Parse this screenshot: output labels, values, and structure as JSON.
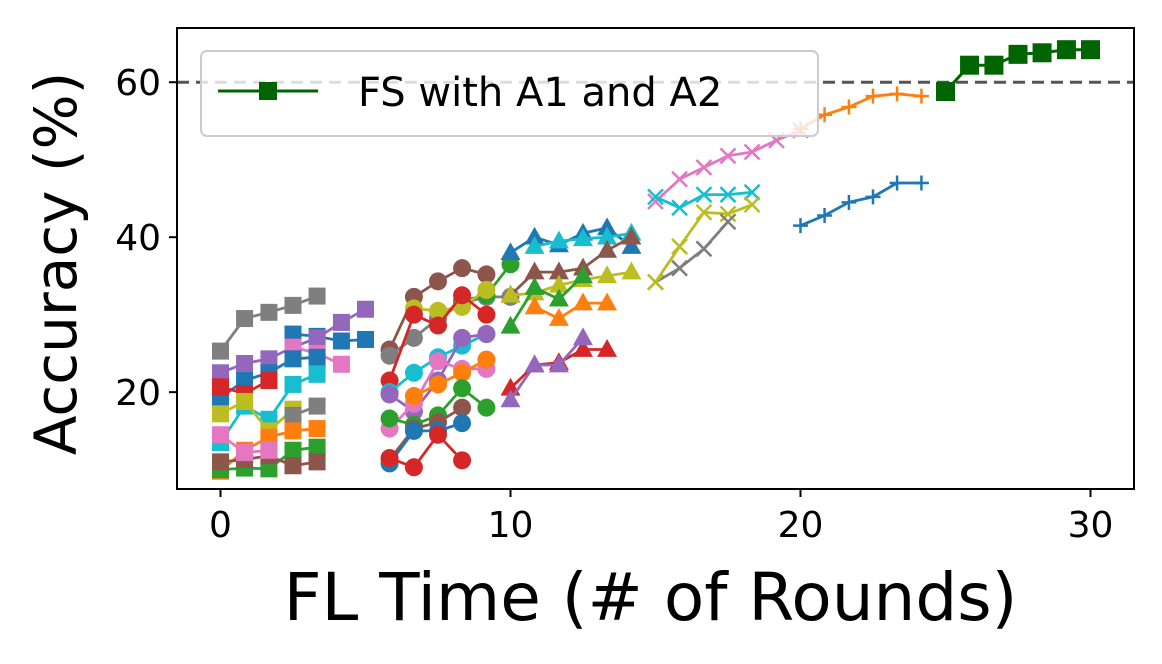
{
  "chart_data": {
    "type": "line",
    "title": "",
    "xlabel": "FL Time (# of Rounds)",
    "ylabel": "Accuracy (%)",
    "xlim": [
      -1.5,
      31.5
    ],
    "ylim": [
      7.5,
      67
    ],
    "xticks": [
      0,
      10,
      20,
      30
    ],
    "yticks": [
      20,
      40,
      60
    ],
    "grid": false,
    "legend": {
      "placement": "top-left",
      "entries": [
        "FS with A1 and A2"
      ]
    },
    "reference_line": {
      "y": 60,
      "style": "dashed",
      "color": "#555555"
    },
    "colors": {
      "blue": "#1f77b4",
      "orange": "#ff7f0e",
      "green": "#2ca02c",
      "red": "#d62728",
      "purple": "#9467bd",
      "brown": "#8c564b",
      "pink": "#e377c2",
      "gray": "#7f7f7f",
      "olive": "#bcbd22",
      "cyan": "#17becf",
      "darkgreen": "#006400"
    },
    "series": [
      {
        "color": "#7f7f7f",
        "marker": "square",
        "x": [
          0,
          0.83,
          1.67,
          2.5,
          3.33
        ],
        "y": [
          25.3,
          29.5,
          30.3,
          31.2,
          32.4
        ]
      },
      {
        "color": "#1f77b4",
        "marker": "square",
        "x": [
          2.5,
          3.33,
          4.17,
          5.0
        ],
        "y": [
          27.5,
          27.2,
          26.6,
          26.8
        ]
      },
      {
        "color": "#9467bd",
        "marker": "square",
        "x": [
          0,
          0.83,
          1.67,
          2.5,
          3.33,
          4.17,
          5.0
        ],
        "y": [
          22.5,
          23.7,
          24.3,
          25.8,
          27.0,
          29.0,
          30.7
        ]
      },
      {
        "color": "#e377c2",
        "marker": "square",
        "x": [
          2.5,
          3.33,
          4.17
        ],
        "y": [
          25.8,
          25.0,
          23.6
        ]
      },
      {
        "color": "#1f77b4",
        "marker": "square",
        "x": [
          0,
          0.83,
          1.67,
          2.5,
          3.33
        ],
        "y": [
          19.3,
          21.5,
          22.5,
          24.3,
          24.5
        ]
      },
      {
        "color": "#d62728",
        "marker": "square",
        "x": [
          0,
          0.83,
          1.67
        ],
        "y": [
          20.7,
          19.8,
          21.5
        ]
      },
      {
        "color": "#17becf",
        "marker": "square",
        "x": [
          0,
          0.83,
          1.67,
          2.5,
          3.33
        ],
        "y": [
          13.5,
          18.2,
          16.5,
          21.0,
          22.3
        ]
      },
      {
        "color": "#bcbd22",
        "marker": "square",
        "x": [
          0,
          0.83,
          1.67,
          2.5
        ],
        "y": [
          17.2,
          18.8,
          15.0,
          17.8
        ]
      },
      {
        "color": "#7f7f7f",
        "marker": "square",
        "x": [
          2.5,
          3.33
        ],
        "y": [
          17.0,
          18.2
        ]
      },
      {
        "color": "#ff7f0e",
        "marker": "square",
        "x": [
          0,
          0.83,
          1.67,
          2.5,
          3.33
        ],
        "y": [
          9.8,
          12.5,
          14.2,
          15.0,
          15.3
        ]
      },
      {
        "color": "#2ca02c",
        "marker": "square",
        "x": [
          0,
          0.83,
          1.67,
          2.5,
          3.33
        ],
        "y": [
          10.0,
          10.2,
          10.1,
          12.5,
          12.9
        ]
      },
      {
        "color": "#8c564b",
        "marker": "square",
        "x": [
          0,
          0.83,
          1.67,
          2.5,
          3.33
        ],
        "y": [
          11.0,
          11.3,
          11.8,
          10.5,
          11.0
        ]
      },
      {
        "color": "#e377c2",
        "marker": "square",
        "x": [
          0,
          0.83,
          1.67
        ],
        "y": [
          14.5,
          12.2,
          12.5
        ]
      },
      {
        "color": "#8c564b",
        "marker": "circle",
        "x": [
          5.83,
          6.67,
          7.5,
          8.33,
          9.17
        ],
        "y": [
          25.5,
          32.3,
          34.3,
          36.0,
          35.2
        ]
      },
      {
        "color": "#7f7f7f",
        "marker": "circle",
        "x": [
          5.83,
          6.67,
          7.5,
          8.33,
          9.17,
          10.0
        ],
        "y": [
          24.7,
          27.0,
          29.5,
          31.5,
          32.3,
          32.3
        ]
      },
      {
        "color": "#2ca02c",
        "marker": "circle",
        "x": [
          8.33,
          9.17,
          10.0
        ],
        "y": [
          31.8,
          32.5,
          36.5
        ]
      },
      {
        "color": "#bcbd22",
        "marker": "circle",
        "x": [
          6.67,
          7.5,
          8.33,
          9.17
        ],
        "y": [
          30.8,
          30.5,
          31.0,
          33.2
        ]
      },
      {
        "color": "#d62728",
        "marker": "circle",
        "x": [
          5.83,
          6.67,
          7.5,
          8.33,
          9.17
        ],
        "y": [
          21.5,
          30.0,
          28.6,
          32.5,
          30.0
        ]
      },
      {
        "color": "#17becf",
        "marker": "circle",
        "x": [
          5.83,
          6.67,
          7.5,
          8.33,
          9.17
        ],
        "y": [
          20.0,
          22.5,
          24.5,
          26.0,
          27.5
        ]
      },
      {
        "color": "#9467bd",
        "marker": "circle",
        "x": [
          5.83,
          6.67,
          7.5,
          8.33,
          9.17
        ],
        "y": [
          19.7,
          17.5,
          21.5,
          27.0,
          27.5
        ]
      },
      {
        "color": "#e377c2",
        "marker": "circle",
        "x": [
          5.83,
          6.67,
          7.5,
          8.33,
          9.17
        ],
        "y": [
          15.3,
          18.5,
          24.0,
          23.0,
          23.0
        ]
      },
      {
        "color": "#ff7f0e",
        "marker": "circle",
        "x": [
          6.67,
          7.5,
          8.33,
          9.17
        ],
        "y": [
          19.5,
          21.0,
          22.5,
          24.2
        ]
      },
      {
        "color": "#2ca02c",
        "marker": "circle",
        "x": [
          5.83,
          6.67,
          7.5,
          8.33,
          9.17
        ],
        "y": [
          16.6,
          15.8,
          17.0,
          20.5,
          18.0
        ]
      },
      {
        "color": "#8c564b",
        "marker": "circle",
        "x": [
          5.83,
          6.67,
          7.5,
          8.33
        ],
        "y": [
          11.3,
          15.3,
          16.1,
          18.0
        ]
      },
      {
        "color": "#1f77b4",
        "marker": "circle",
        "x": [
          5.83,
          6.67,
          7.5,
          8.33
        ],
        "y": [
          10.8,
          15.0,
          15.0,
          16.0
        ]
      },
      {
        "color": "#d62728",
        "marker": "circle",
        "x": [
          5.83,
          6.67,
          7.5,
          8.33
        ],
        "y": [
          11.5,
          10.3,
          14.5,
          11.2
        ]
      },
      {
        "color": "#1f77b4",
        "marker": "triangle",
        "x": [
          10.0,
          10.83,
          11.67,
          12.5,
          13.33,
          14.17
        ],
        "y": [
          38.0,
          40.0,
          39.0,
          40.5,
          41.2,
          38.8
        ]
      },
      {
        "color": "#17becf",
        "marker": "triangle",
        "x": [
          10.83,
          11.67,
          12.5,
          13.33,
          14.17
        ],
        "y": [
          38.8,
          39.5,
          39.8,
          40.0,
          40.5
        ]
      },
      {
        "color": "#8c564b",
        "marker": "triangle",
        "x": [
          10.0,
          10.83,
          11.67,
          12.5,
          13.33,
          14.17
        ],
        "y": [
          32.5,
          35.5,
          35.5,
          36.0,
          38.3,
          40.0
        ]
      },
      {
        "color": "#bcbd22",
        "marker": "triangle",
        "x": [
          10.0,
          10.83,
          11.67,
          12.5,
          13.33,
          14.17
        ],
        "y": [
          32.5,
          32.8,
          33.8,
          34.5,
          35.0,
          35.5
        ]
      },
      {
        "color": "#2ca02c",
        "marker": "triangle",
        "x": [
          10.0,
          10.83,
          11.67,
          12.5
        ],
        "y": [
          28.5,
          33.5,
          32.0,
          35.0
        ]
      },
      {
        "color": "#ff7f0e",
        "marker": "triangle",
        "x": [
          10.83,
          11.67,
          12.5,
          13.33
        ],
        "y": [
          31.0,
          29.5,
          31.5,
          31.5
        ]
      },
      {
        "color": "#d62728",
        "marker": "triangle",
        "x": [
          10.0,
          10.83,
          11.67,
          12.5,
          13.33
        ],
        "y": [
          20.5,
          23.5,
          23.8,
          25.5,
          25.5
        ]
      },
      {
        "color": "#9467bd",
        "marker": "triangle",
        "x": [
          10.0,
          10.83,
          11.67,
          12.5
        ],
        "y": [
          19.0,
          23.5,
          23.5,
          27.0
        ]
      },
      {
        "color": "#e377c2",
        "marker": "x",
        "x": [
          15.0,
          15.83,
          16.67,
          17.5,
          18.33,
          19.17,
          20.0
        ],
        "y": [
          44.6,
          47.5,
          49.0,
          50.5,
          51.0,
          52.5,
          53.8
        ]
      },
      {
        "color": "#17becf",
        "marker": "x",
        "x": [
          15.0,
          15.83,
          16.67,
          17.5,
          18.33
        ],
        "y": [
          45.2,
          43.8,
          45.5,
          45.5,
          45.8
        ]
      },
      {
        "color": "#bcbd22",
        "marker": "x",
        "x": [
          15.83,
          16.67,
          17.5,
          18.33
        ],
        "y": [
          38.8,
          43.2,
          43.0,
          44.2
        ]
      },
      {
        "color": "#7f7f7f",
        "marker": "x",
        "x": [
          15.0,
          15.83,
          16.67,
          17.5
        ],
        "y": [
          34.2,
          36.0,
          38.5,
          42.0
        ]
      },
      {
        "color": "#bcbd22",
        "marker": "x",
        "x": [
          15.0,
          15.83
        ],
        "y": [
          34.2,
          38.8
        ]
      },
      {
        "color": "#ff7f0e",
        "marker": "plus",
        "x": [
          20.0,
          20.83,
          21.67,
          22.5,
          23.33,
          24.17
        ],
        "y": [
          54.0,
          55.8,
          56.8,
          58.2,
          58.5,
          58.2
        ]
      },
      {
        "color": "#1f77b4",
        "marker": "plus",
        "x": [
          20.0,
          20.83,
          21.67,
          22.5,
          23.33,
          24.17
        ],
        "y": [
          41.5,
          42.8,
          44.5,
          45.2,
          47.0,
          47.0
        ]
      },
      {
        "name": "FS with A1 and A2",
        "color": "#006400",
        "marker": "square",
        "x": [
          25.0,
          25.83,
          26.67,
          27.5,
          28.33,
          29.17,
          30.0
        ],
        "y": [
          58.8,
          62.2,
          62.2,
          63.6,
          63.8,
          64.2,
          64.2
        ]
      }
    ]
  }
}
